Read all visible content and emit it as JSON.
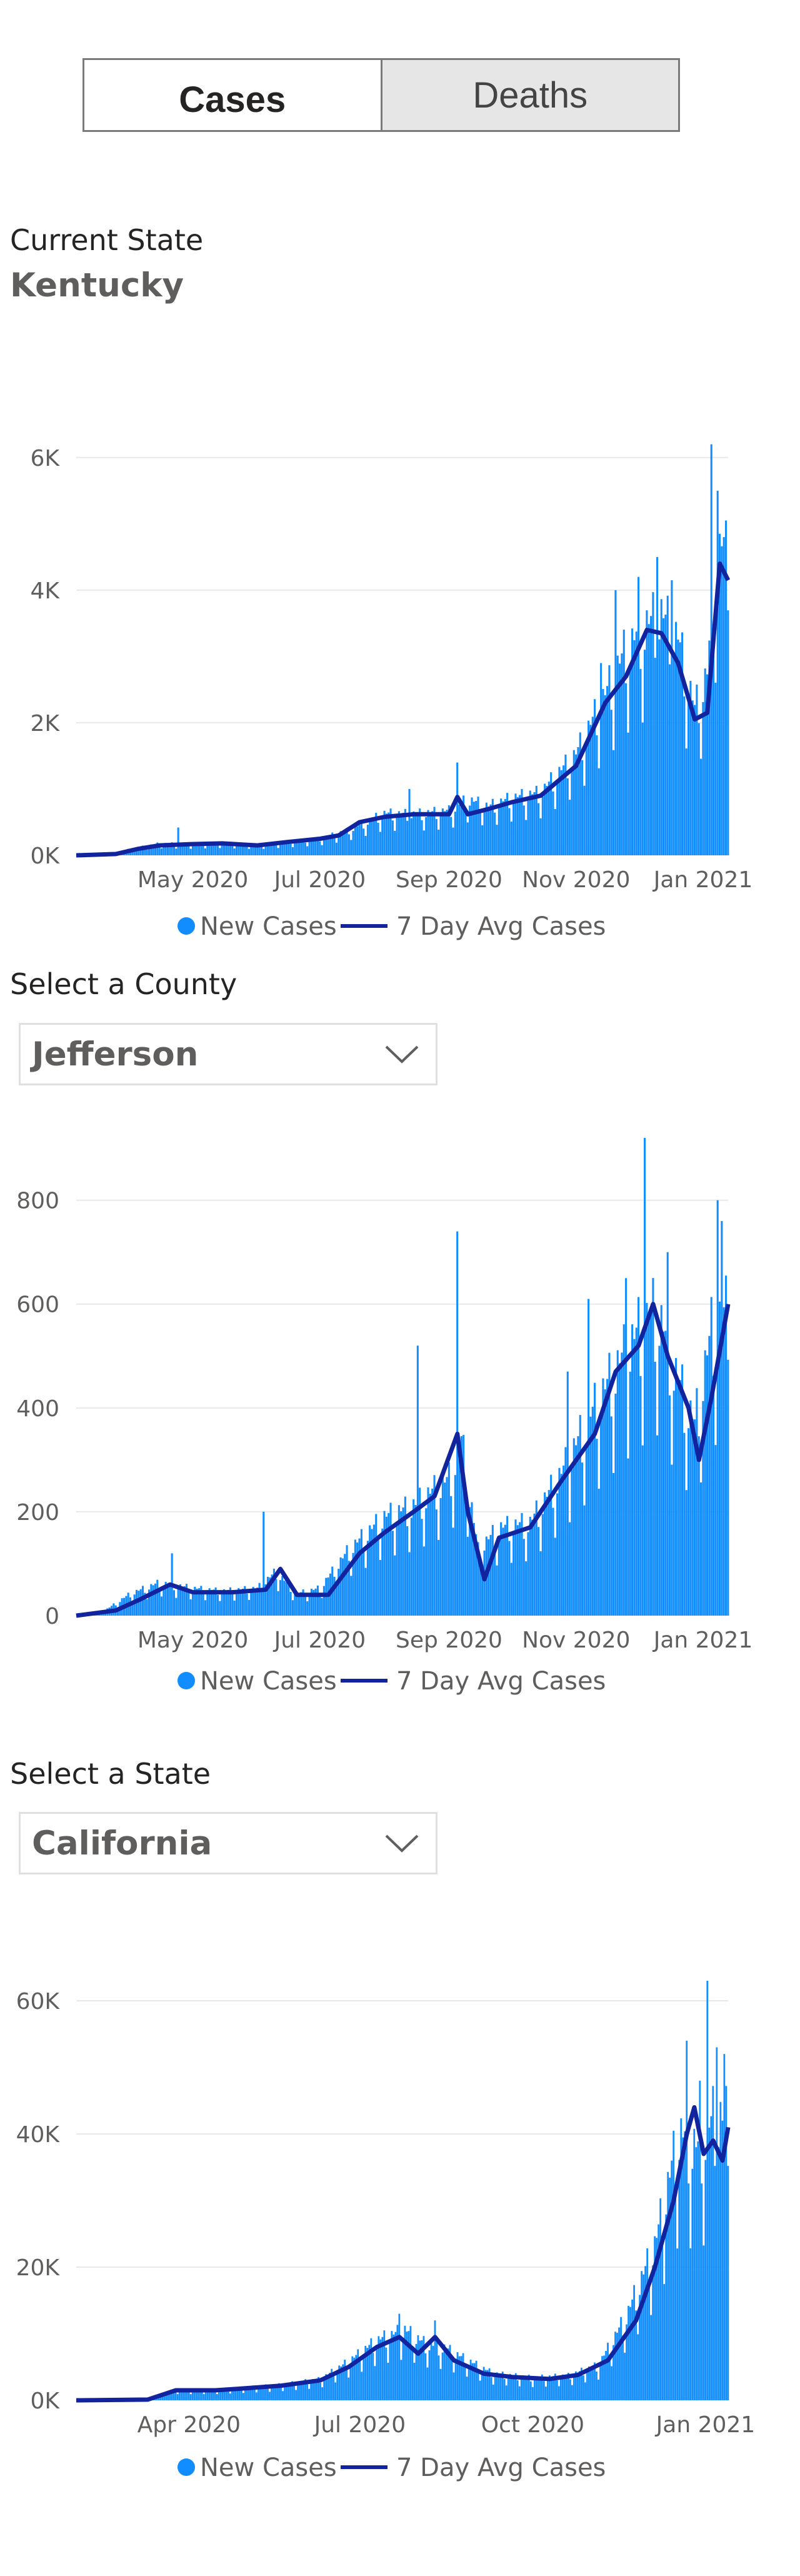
{
  "toggle": {
    "cases_label": "Cases",
    "deaths_label": "Deaths"
  },
  "state_section": {
    "label": "Current State",
    "value": "Kentucky"
  },
  "county_section": {
    "label": "Select a County",
    "value": "Jefferson"
  },
  "state_select_section": {
    "label": "Select a State",
    "value": "California"
  },
  "colors": {
    "bar": "#118dff",
    "line": "#12239e",
    "text": "#605e5c",
    "grid": "#e8e8e8"
  },
  "icons": {
    "dropdown": "chevron-down-icon"
  },
  "chart_data": [
    {
      "type": "bar",
      "title": "Kentucky",
      "x_start": "2020-03-06",
      "x_end": "2021-01-13",
      "x_ticks": [
        {
          "date": "2020-05-01",
          "label": "May 2020"
        },
        {
          "date": "2020-07-01",
          "label": "Jul 2020"
        },
        {
          "date": "2020-09-01",
          "label": "Sep 2020"
        },
        {
          "date": "2020-11-01",
          "label": "Nov 2020"
        },
        {
          "date": "2021-01-01",
          "label": "Jan 2021"
        }
      ],
      "y_ticks": [
        {
          "value": 0,
          "label": "0K"
        },
        {
          "value": 2000,
          "label": "2K"
        },
        {
          "value": 4000,
          "label": "4K"
        },
        {
          "value": 6000,
          "label": "6K"
        }
      ],
      "ylim": [
        0,
        6300
      ],
      "grid": true,
      "legend_position": "bottom",
      "series": [
        {
          "name": "New Cases",
          "kind": "bars",
          "points": [
            [
              "2020-03-06",
              0
            ],
            [
              "2020-03-20",
              10
            ],
            [
              "2020-04-01",
              90
            ],
            [
              "2020-04-15",
              170
            ],
            [
              "2020-05-01",
              160
            ],
            [
              "2020-05-15",
              180
            ],
            [
              "2020-06-01",
              150
            ],
            [
              "2020-06-15",
              190
            ],
            [
              "2020-07-01",
              240
            ],
            [
              "2020-07-15",
              360
            ],
            [
              "2020-08-01",
              600
            ],
            [
              "2020-08-15",
              590
            ],
            [
              "2020-09-01",
              640
            ],
            [
              "2020-09-10",
              800
            ],
            [
              "2020-09-20",
              700
            ],
            [
              "2020-10-01",
              820
            ],
            [
              "2020-10-15",
              900
            ],
            [
              "2020-11-01",
              1450
            ],
            [
              "2020-11-15",
              2300
            ],
            [
              "2020-11-25",
              2950
            ],
            [
              "2020-12-05",
              3300
            ],
            [
              "2020-12-12",
              3450
            ],
            [
              "2020-12-20",
              3100
            ],
            [
              "2020-12-28",
              2100
            ],
            [
              "2021-01-03",
              2600
            ],
            [
              "2021-01-08",
              4600
            ],
            [
              "2021-01-13",
              4200
            ]
          ],
          "spikes": [
            [
              "2020-04-24",
              420
            ],
            [
              "2020-08-13",
              1000
            ],
            [
              "2020-09-05",
              1400
            ],
            [
              "2020-11-13",
              2900
            ],
            [
              "2020-11-20",
              4000
            ],
            [
              "2020-12-01",
              4200
            ],
            [
              "2020-12-10",
              4500
            ],
            [
              "2020-12-17",
              4150
            ],
            [
              "2021-01-05",
              6200
            ],
            [
              "2021-01-08",
              5500
            ],
            [
              "2021-01-09",
              4850
            ],
            [
              "2021-01-11",
              4800
            ]
          ]
        },
        {
          "name": "7 Day Avg Cases",
          "kind": "line",
          "points": [
            [
              "2020-03-06",
              0
            ],
            [
              "2020-03-25",
              20
            ],
            [
              "2020-04-05",
              100
            ],
            [
              "2020-04-15",
              150
            ],
            [
              "2020-05-01",
              170
            ],
            [
              "2020-05-15",
              180
            ],
            [
              "2020-06-01",
              150
            ],
            [
              "2020-06-15",
              200
            ],
            [
              "2020-07-01",
              250
            ],
            [
              "2020-07-10",
              300
            ],
            [
              "2020-07-20",
              500
            ],
            [
              "2020-08-01",
              580
            ],
            [
              "2020-08-15",
              620
            ],
            [
              "2020-09-01",
              620
            ],
            [
              "2020-09-05",
              880
            ],
            [
              "2020-09-10",
              620
            ],
            [
              "2020-09-20",
              700
            ],
            [
              "2020-10-01",
              800
            ],
            [
              "2020-10-15",
              900
            ],
            [
              "2020-11-01",
              1350
            ],
            [
              "2020-11-15",
              2300
            ],
            [
              "2020-11-25",
              2700
            ],
            [
              "2020-12-05",
              3400
            ],
            [
              "2020-12-12",
              3350
            ],
            [
              "2020-12-20",
              2900
            ],
            [
              "2020-12-28",
              2050
            ],
            [
              "2021-01-03",
              2150
            ],
            [
              "2021-01-09",
              4400
            ],
            [
              "2021-01-13",
              4150
            ]
          ]
        }
      ]
    },
    {
      "type": "bar",
      "title": "Jefferson",
      "x_start": "2020-03-06",
      "x_end": "2021-01-13",
      "x_ticks": [
        {
          "date": "2020-05-01",
          "label": "May 2020"
        },
        {
          "date": "2020-07-01",
          "label": "Jul 2020"
        },
        {
          "date": "2020-09-01",
          "label": "Sep 2020"
        },
        {
          "date": "2020-11-01",
          "label": "Nov 2020"
        },
        {
          "date": "2021-01-01",
          "label": "Jan 2021"
        }
      ],
      "y_ticks": [
        {
          "value": 0,
          "label": "0"
        },
        {
          "value": 200,
          "label": "200"
        },
        {
          "value": 400,
          "label": "400"
        },
        {
          "value": 600,
          "label": "600"
        },
        {
          "value": 800,
          "label": "800"
        }
      ],
      "ylim": [
        0,
        920
      ],
      "grid": true,
      "legend_position": "bottom",
      "series": [
        {
          "name": "New Cases",
          "kind": "bars",
          "points": [
            [
              "2020-03-06",
              0
            ],
            [
              "2020-03-20",
              10
            ],
            [
              "2020-04-01",
              40
            ],
            [
              "2020-04-15",
              60
            ],
            [
              "2020-05-01",
              50
            ],
            [
              "2020-05-15",
              45
            ],
            [
              "2020-06-01",
              50
            ],
            [
              "2020-06-10",
              80
            ],
            [
              "2020-06-20",
              40
            ],
            [
              "2020-07-01",
              50
            ],
            [
              "2020-07-15",
              120
            ],
            [
              "2020-08-01",
              180
            ],
            [
              "2020-08-15",
              200
            ],
            [
              "2020-09-01",
              250
            ],
            [
              "2020-09-07",
              320
            ],
            [
              "2020-09-15",
              120
            ],
            [
              "2020-09-25",
              160
            ],
            [
              "2020-10-10",
              170
            ],
            [
              "2020-10-25",
              260
            ],
            [
              "2020-11-10",
              380
            ],
            [
              "2020-11-20",
              450
            ],
            [
              "2020-12-01",
              520
            ],
            [
              "2020-12-10",
              560
            ],
            [
              "2020-12-20",
              430
            ],
            [
              "2020-12-28",
              350
            ],
            [
              "2021-01-05",
              520
            ],
            [
              "2021-01-13",
              560
            ]
          ],
          "spikes": [
            [
              "2020-04-21",
              120
            ],
            [
              "2020-06-04",
              200
            ],
            [
              "2020-08-17",
              520
            ],
            [
              "2020-09-05",
              740
            ],
            [
              "2020-10-28",
              470
            ],
            [
              "2020-11-07",
              610
            ],
            [
              "2020-11-25",
              650
            ],
            [
              "2020-12-04",
              920
            ],
            [
              "2020-12-15",
              700
            ],
            [
              "2021-01-08",
              800
            ],
            [
              "2021-01-10",
              760
            ]
          ]
        },
        {
          "name": "7 Day Avg Cases",
          "kind": "line",
          "points": [
            [
              "2020-03-06",
              0
            ],
            [
              "2020-03-25",
              10
            ],
            [
              "2020-04-05",
              30
            ],
            [
              "2020-04-20",
              60
            ],
            [
              "2020-05-01",
              45
            ],
            [
              "2020-05-20",
              45
            ],
            [
              "2020-06-05",
              50
            ],
            [
              "2020-06-12",
              90
            ],
            [
              "2020-06-20",
              40
            ],
            [
              "2020-07-05",
              40
            ],
            [
              "2020-07-20",
              120
            ],
            [
              "2020-08-01",
              160
            ],
            [
              "2020-08-15",
              200
            ],
            [
              "2020-08-25",
              230
            ],
            [
              "2020-09-05",
              350
            ],
            [
              "2020-09-10",
              200
            ],
            [
              "2020-09-18",
              70
            ],
            [
              "2020-09-25",
              150
            ],
            [
              "2020-10-10",
              170
            ],
            [
              "2020-10-25",
              260
            ],
            [
              "2020-11-10",
              350
            ],
            [
              "2020-11-20",
              470
            ],
            [
              "2020-12-01",
              520
            ],
            [
              "2020-12-08",
              600
            ],
            [
              "2020-12-15",
              500
            ],
            [
              "2020-12-25",
              400
            ],
            [
              "2020-12-30",
              300
            ],
            [
              "2021-01-05",
              420
            ],
            [
              "2021-01-13",
              600
            ]
          ]
        }
      ]
    },
    {
      "type": "bar",
      "title": "California",
      "x_start": "2020-02-01",
      "x_end": "2021-01-13",
      "x_ticks": [
        {
          "date": "2020-04-01",
          "label": "Apr 2020"
        },
        {
          "date": "2020-07-01",
          "label": "Jul 2020"
        },
        {
          "date": "2020-10-01",
          "label": "Oct 2020"
        },
        {
          "date": "2021-01-01",
          "label": "Jan 2021"
        }
      ],
      "y_ticks": [
        {
          "value": 0,
          "label": "0K"
        },
        {
          "value": 20000,
          "label": "20K"
        },
        {
          "value": 40000,
          "label": "40K"
        },
        {
          "value": 60000,
          "label": "60K"
        }
      ],
      "ylim": [
        0,
        63000
      ],
      "grid": true,
      "legend_position": "bottom",
      "series": [
        {
          "name": "New Cases",
          "kind": "bars",
          "points": [
            [
              "2020-02-01",
              0
            ],
            [
              "2020-03-10",
              200
            ],
            [
              "2020-03-25",
              1500
            ],
            [
              "2020-04-15",
              1500
            ],
            [
              "2020-05-01",
              1800
            ],
            [
              "2020-05-20",
              2200
            ],
            [
              "2020-06-10",
              3000
            ],
            [
              "2020-06-25",
              5500
            ],
            [
              "2020-07-10",
              8500
            ],
            [
              "2020-07-25",
              10000
            ],
            [
              "2020-08-05",
              8000
            ],
            [
              "2020-08-15",
              7500
            ],
            [
              "2020-08-25",
              6000
            ],
            [
              "2020-09-10",
              3800
            ],
            [
              "2020-10-01",
              3200
            ],
            [
              "2020-10-20",
              3500
            ],
            [
              "2020-11-05",
              5000
            ],
            [
              "2020-11-20",
              12000
            ],
            [
              "2020-12-05",
              22000
            ],
            [
              "2020-12-18",
              38000
            ],
            [
              "2020-12-28",
              36000
            ],
            [
              "2021-01-05",
              40000
            ],
            [
              "2021-01-13",
              40000
            ]
          ],
          "spikes": [
            [
              "2020-07-22",
              13000
            ],
            [
              "2020-08-10",
              12000
            ],
            [
              "2020-12-14",
              36000
            ],
            [
              "2020-12-22",
              54000
            ],
            [
              "2020-12-29",
              48000
            ],
            [
              "2021-01-02",
              63000
            ],
            [
              "2021-01-07",
              53000
            ],
            [
              "2021-01-11",
              52000
            ]
          ]
        },
        {
          "name": "7 Day Avg Cases",
          "kind": "line",
          "points": [
            [
              "2020-02-01",
              0
            ],
            [
              "2020-03-10",
              100
            ],
            [
              "2020-03-25",
              1500
            ],
            [
              "2020-04-15",
              1500
            ],
            [
              "2020-05-01",
              1800
            ],
            [
              "2020-05-20",
              2200
            ],
            [
              "2020-06-10",
              3000
            ],
            [
              "2020-06-25",
              5000
            ],
            [
              "2020-07-10",
              8000
            ],
            [
              "2020-07-22",
              9500
            ],
            [
              "2020-08-01",
              7000
            ],
            [
              "2020-08-10",
              9500
            ],
            [
              "2020-08-20",
              6000
            ],
            [
              "2020-09-05",
              4000
            ],
            [
              "2020-09-20",
              3500
            ],
            [
              "2020-10-10",
              3200
            ],
            [
              "2020-10-25",
              3800
            ],
            [
              "2020-11-10",
              6000
            ],
            [
              "2020-11-25",
              12000
            ],
            [
              "2020-12-05",
              20000
            ],
            [
              "2020-12-15",
              30000
            ],
            [
              "2020-12-22",
              40000
            ],
            [
              "2020-12-26",
              44000
            ],
            [
              "2020-12-31",
              37000
            ],
            [
              "2021-01-05",
              39000
            ],
            [
              "2021-01-10",
              36000
            ],
            [
              "2021-01-13",
              41000
            ]
          ]
        }
      ]
    }
  ]
}
